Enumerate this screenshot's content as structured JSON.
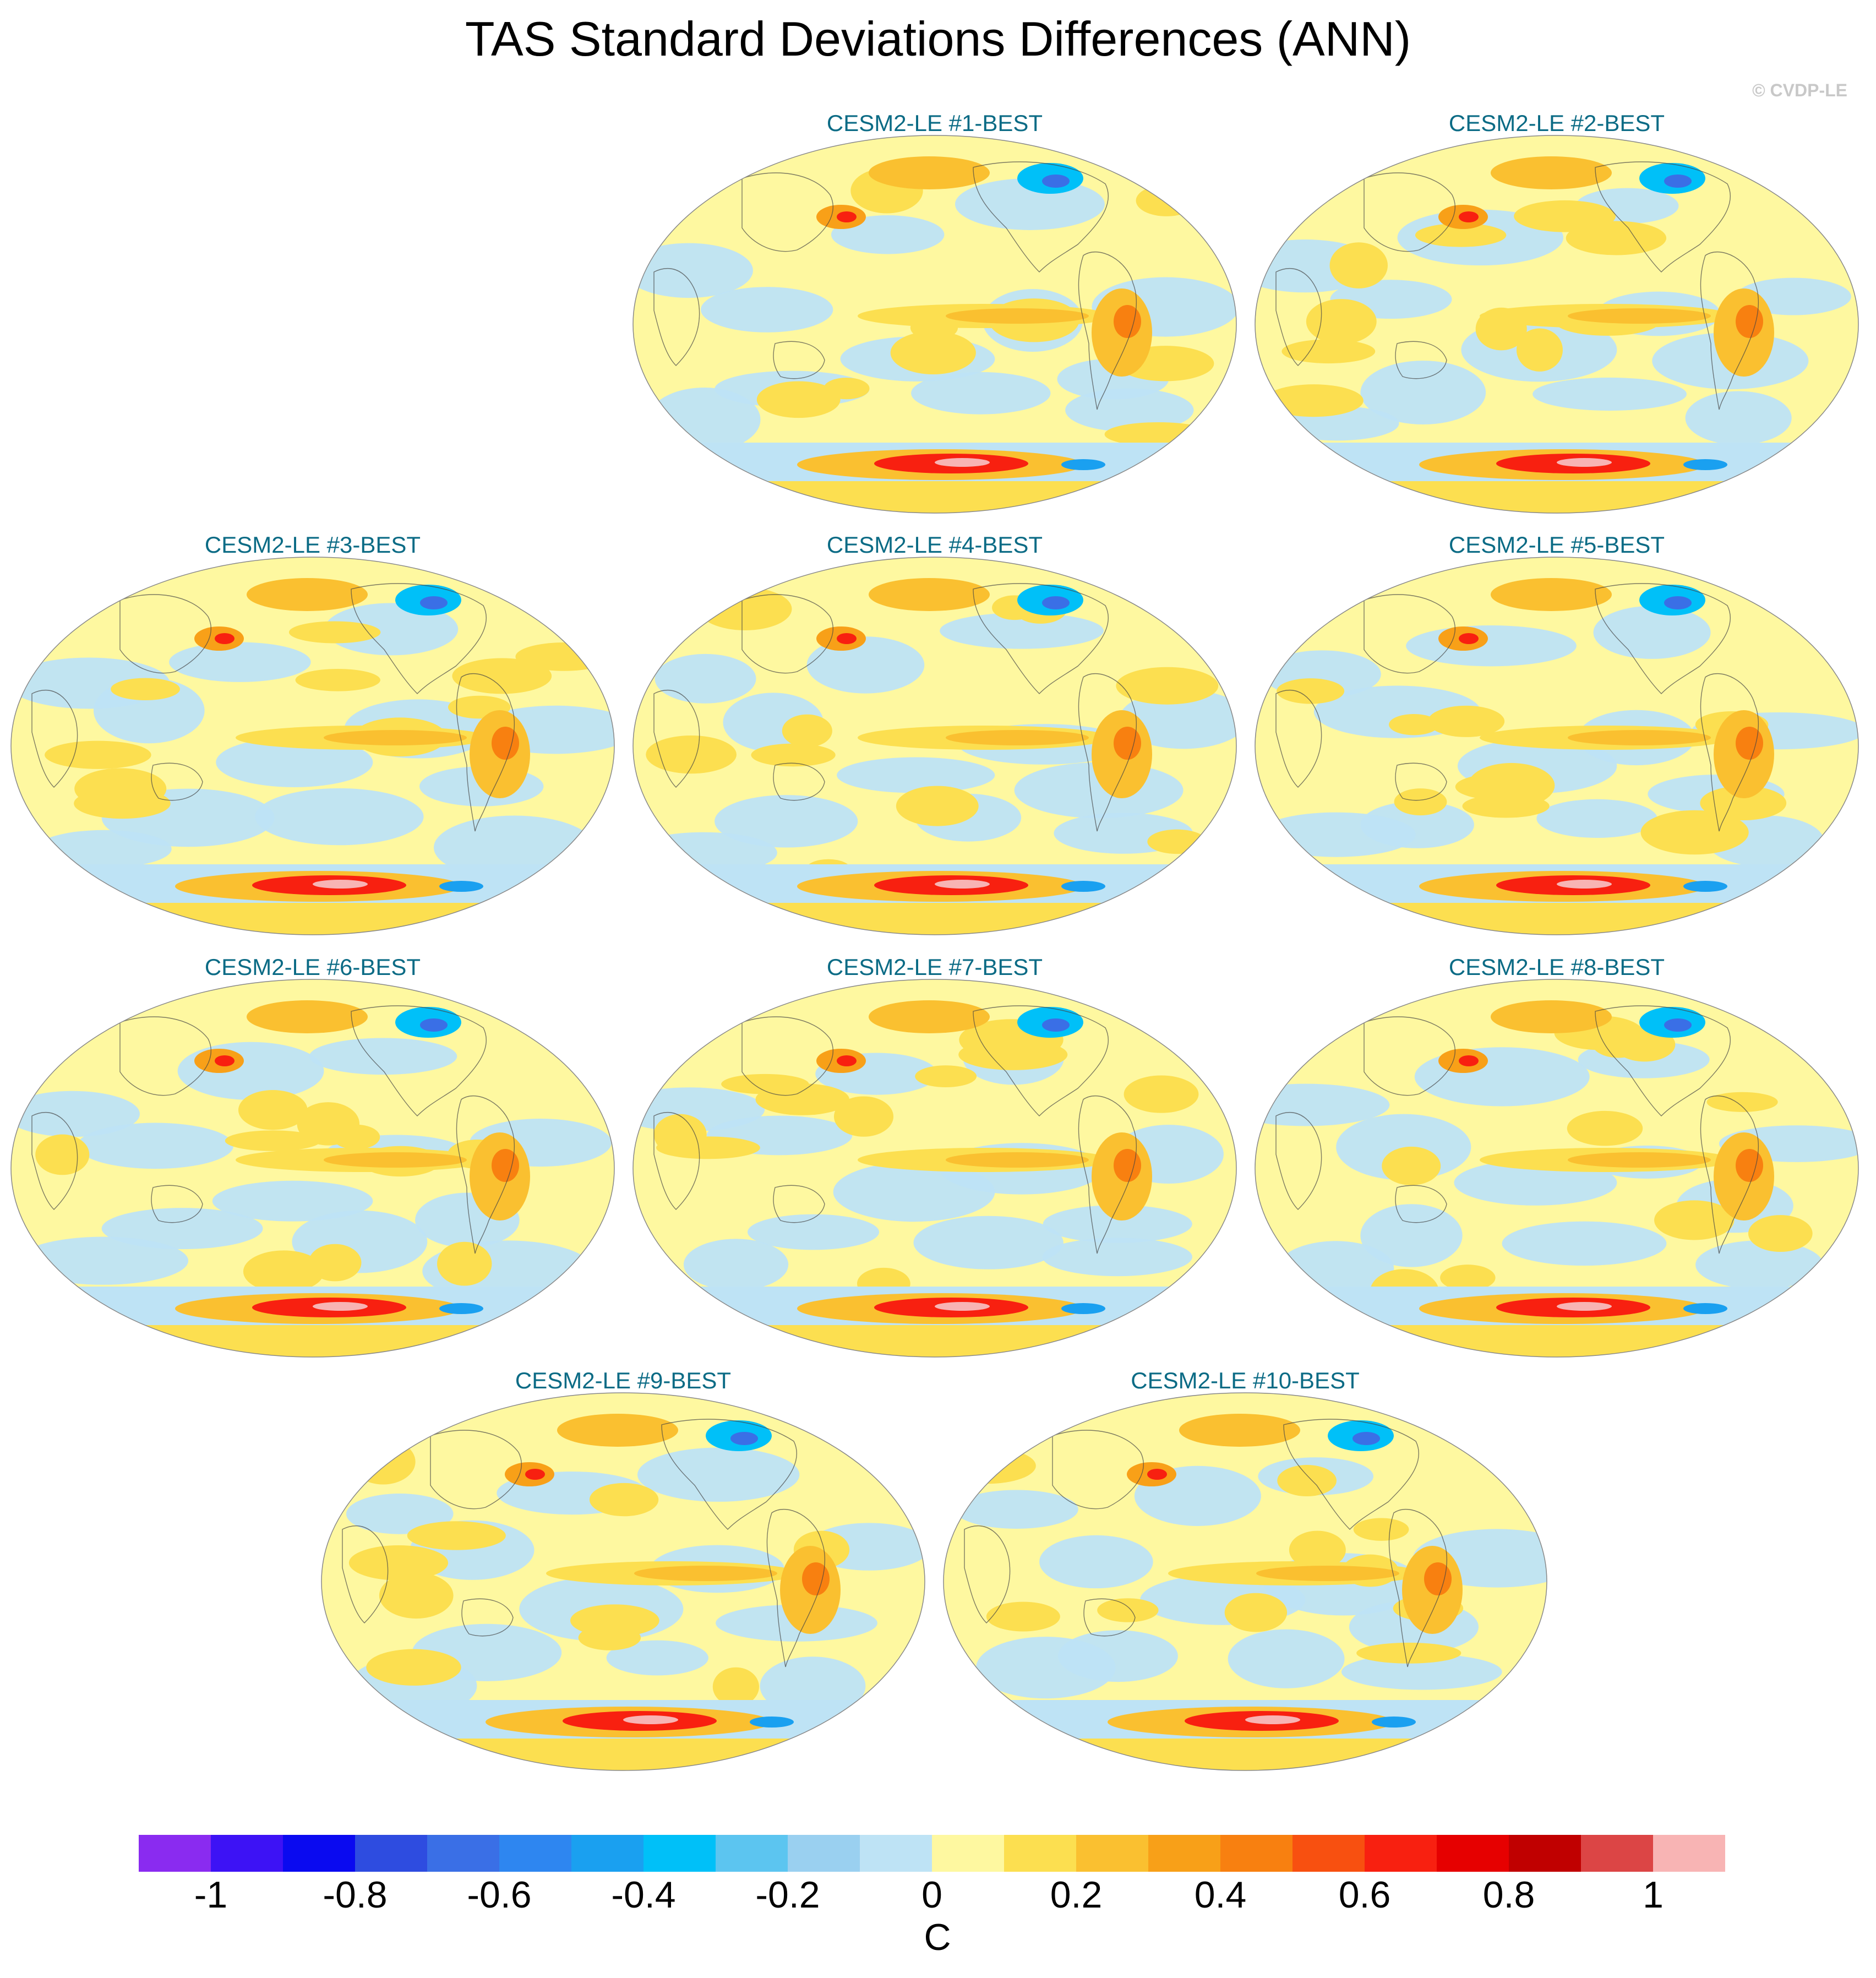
{
  "title": "TAS Standard Deviations Differences (ANN)",
  "credit": "© CVDP-LE",
  "panels": [
    {
      "label": "CESM2-LE #1-BEST"
    },
    {
      "label": "CESM2-LE #2-BEST"
    },
    {
      "label": "CESM2-LE #3-BEST"
    },
    {
      "label": "CESM2-LE #4-BEST"
    },
    {
      "label": "CESM2-LE #5-BEST"
    },
    {
      "label": "CESM2-LE #6-BEST"
    },
    {
      "label": "CESM2-LE #7-BEST"
    },
    {
      "label": "CESM2-LE #8-BEST"
    },
    {
      "label": "CESM2-LE #9-BEST"
    },
    {
      "label": "CESM2-LE #10-BEST"
    }
  ],
  "colorbar": {
    "unit": "C",
    "tick_labels": [
      "-1",
      "-0.8",
      "-0.6",
      "-0.4",
      "-0.2",
      "0",
      "0.2",
      "0.4",
      "0.6",
      "0.8",
      "1"
    ],
    "colors": [
      "#8a2bf0",
      "#3d12f5",
      "#0a0af0",
      "#2e4ce0",
      "#3a6fe6",
      "#2e86f0",
      "#1aa0f0",
      "#00c0f8",
      "#5cc5f0",
      "#9ad0f0",
      "#bee3f5",
      "#fef8a0",
      "#fcdf50",
      "#fac030",
      "#f8a018",
      "#f88010",
      "#f85010",
      "#f82010",
      "#e60000",
      "#c00000",
      "#dc4545",
      "#f8b4b4"
    ]
  }
}
